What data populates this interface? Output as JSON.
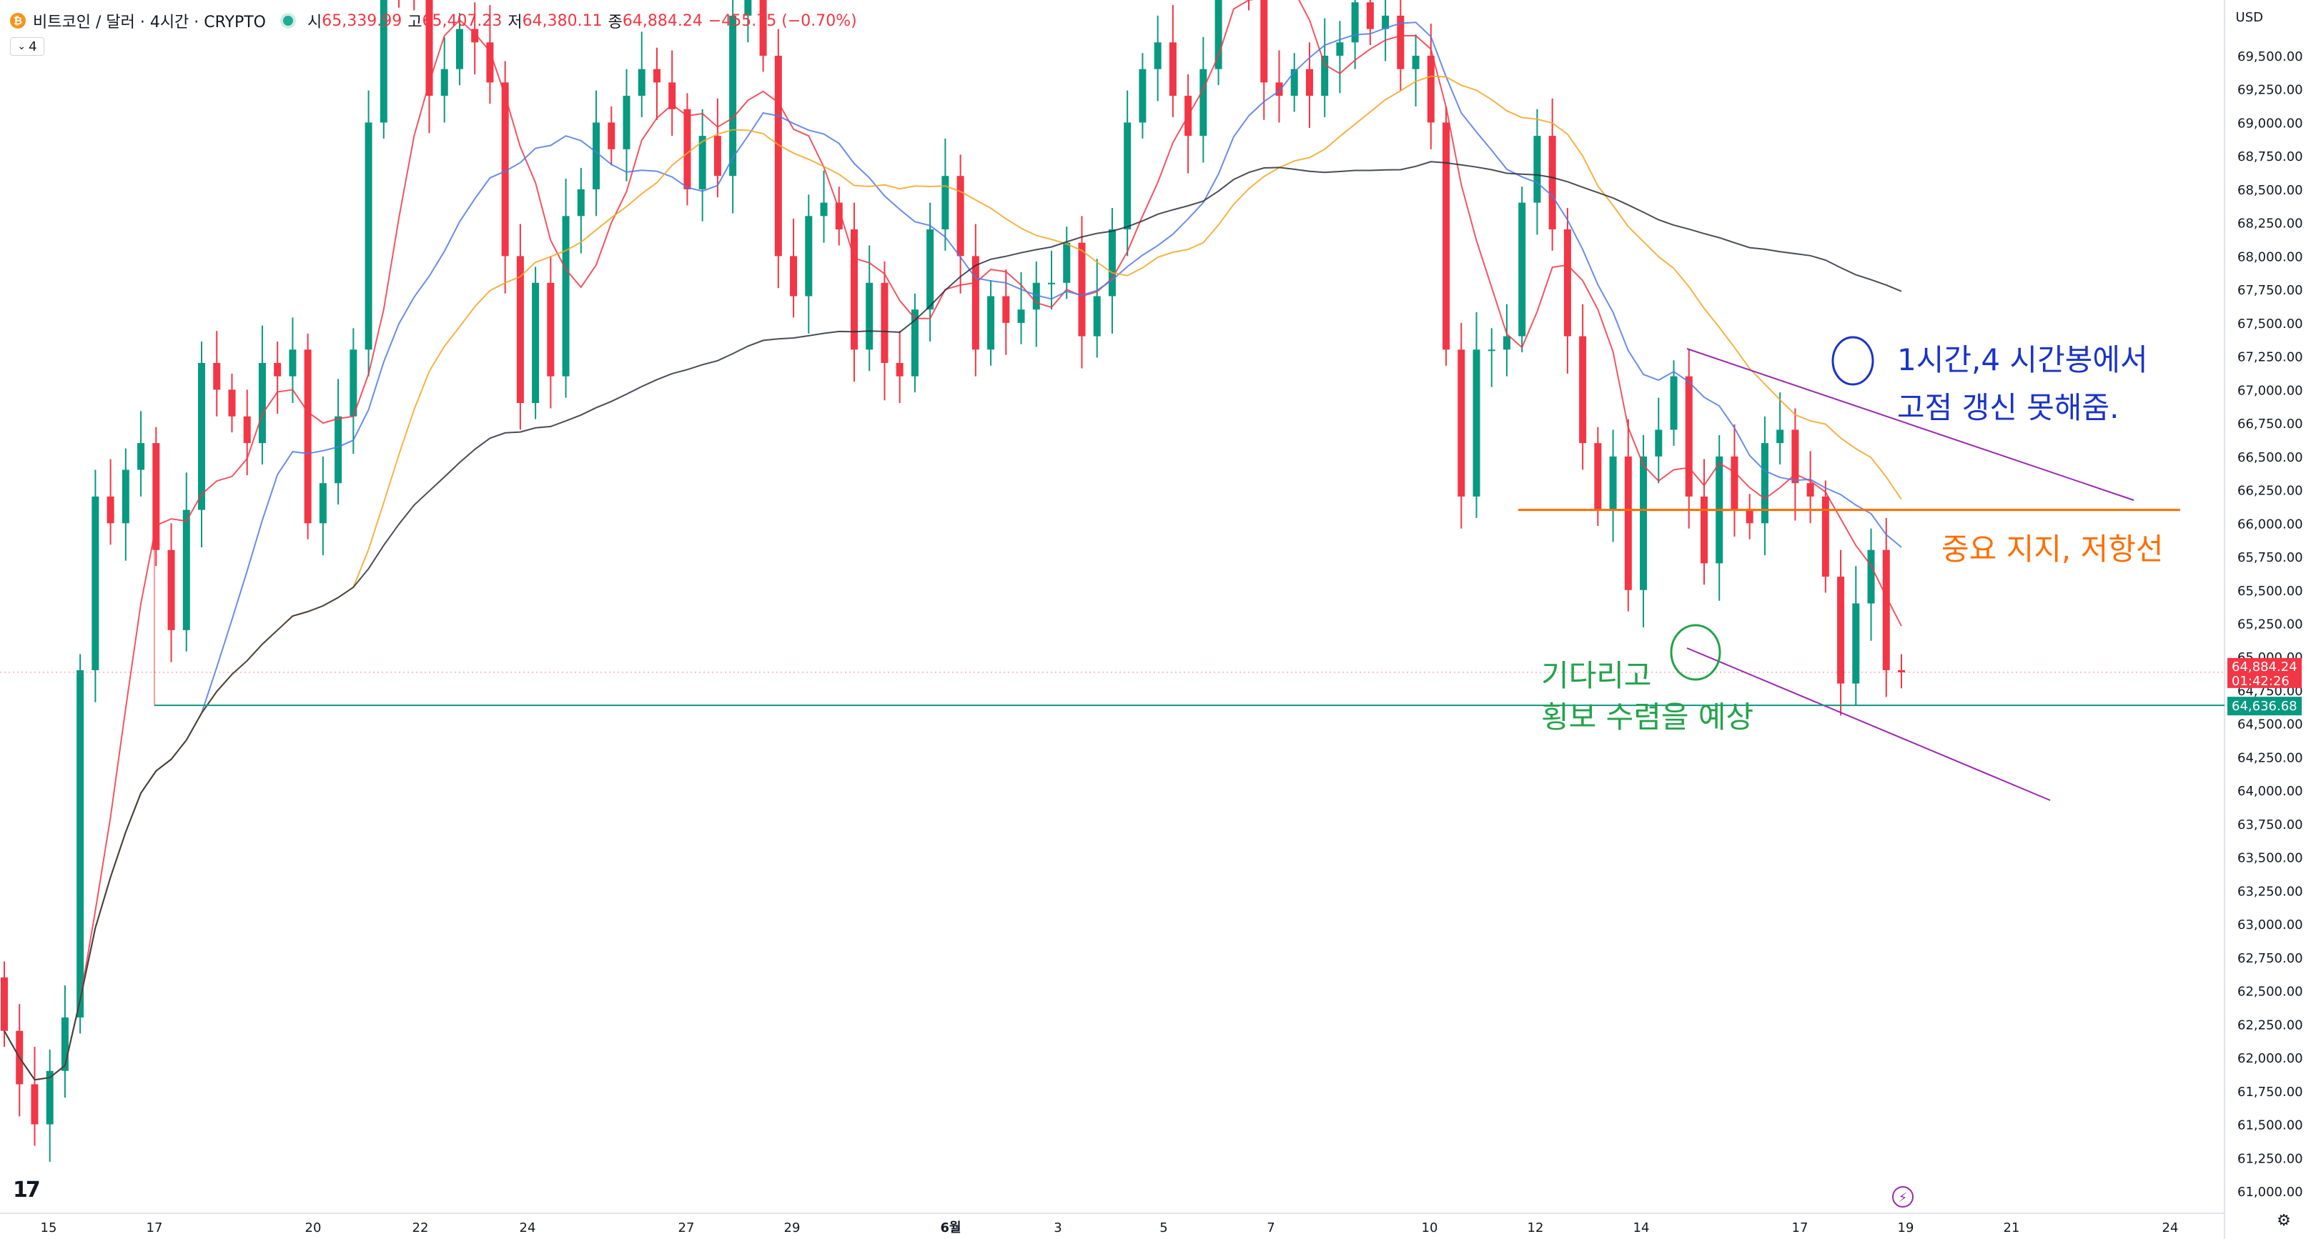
{
  "header": {
    "symbol": "비트코인 / 달러 · 4시간 · CRYPTO",
    "open_label": "시",
    "open_value": "65,339.99",
    "high_label": "고",
    "high_value": "65,407.23",
    "low_label": "저",
    "low_value": "64,380.11",
    "close_label": "종",
    "close_value": "64,884.24",
    "change": "−455.75 (−0.70%)",
    "indicator_badge": "4"
  },
  "currency": "USD",
  "annotations": {
    "blue_line1": "1시간,4 시간봉에서",
    "blue_line2": "고점 갱신 못해줌.",
    "orange": "중요 지지, 저항선",
    "green_line1": "기다리고",
    "green_line2": "횡보 수렴을 예상"
  },
  "colors": {
    "up": "#089981",
    "down": "#f23645",
    "ma_red": "#f23645",
    "ma_blue": "#4d79e6",
    "ma_orange": "#f5a623",
    "ma_black": "#2a2e39",
    "support": "#ff6d00",
    "trend": "#9c27b0",
    "ann_blue": "#1a33c9",
    "ann_green": "#22a34a"
  },
  "chart_data": {
    "type": "candlestick",
    "y_axis_ticks": [
      61000,
      61250,
      61500,
      61750,
      62000,
      62250,
      62500,
      62750,
      63000,
      63250,
      63500,
      63750,
      64000,
      64250,
      64500,
      64750,
      65000,
      65250,
      65500,
      65750,
      66000,
      66250,
      66500,
      66750,
      67000,
      67250,
      67500,
      67750,
      68000,
      68250,
      68500,
      68750,
      69000,
      69250,
      69500
    ],
    "x_axis_labels": [
      "15",
      "17",
      "20",
      "22",
      "24",
      "27",
      "29",
      "6월",
      "3",
      "5",
      "7",
      "10",
      "12",
      "14",
      "17",
      "19",
      "21",
      "24"
    ],
    "price_labels": [
      {
        "value": 64884.24,
        "text": "64,884.24",
        "countdown": "01:42:26"
      },
      {
        "value": 64636.68,
        "text": "64,636.68"
      }
    ],
    "candles_close": [
      62200,
      61800,
      61500,
      61900,
      62300,
      64900,
      66200,
      66000,
      66400,
      66600,
      65800,
      65200,
      66100,
      67200,
      67000,
      66800,
      66600,
      67200,
      67100,
      67300,
      66000,
      66300,
      66800,
      67300,
      69000,
      70200,
      70100,
      70000,
      69200,
      69400,
      69700,
      69600,
      69300,
      68000,
      66900,
      67800,
      67100,
      68300,
      68500,
      69000,
      68800,
      69200,
      69400,
      69300,
      69100,
      68500,
      68900,
      68600,
      69800,
      70100,
      69500,
      68000,
      67700,
      68300,
      68400,
      68200,
      67300,
      67800,
      67200,
      67100,
      67600,
      68200,
      68600,
      68000,
      67300,
      67700,
      67500,
      67600,
      67800,
      67800,
      68100,
      67400,
      67700,
      68200,
      69000,
      69400,
      69600,
      69200,
      68900,
      69400,
      70500,
      71500,
      70000,
      69300,
      69200,
      69400,
      69200,
      69500,
      69600,
      69900,
      69700,
      69800,
      69400,
      69500,
      69000,
      67300,
      66200,
      67300,
      67300,
      67400,
      68400,
      68900,
      68200,
      67400,
      66600,
      66100,
      66500,
      65500,
      66500,
      66700,
      67100,
      66200,
      65700,
      66500,
      66100,
      66000,
      66600,
      66700,
      66300,
      66200,
      65600,
      64800,
      65400,
      65800,
      64900,
      64884
    ],
    "moving_averages": [
      "red",
      "blue",
      "orange",
      "black"
    ],
    "support_level": 66100,
    "horizontal_lines": [
      64884.24,
      64636.68
    ]
  }
}
